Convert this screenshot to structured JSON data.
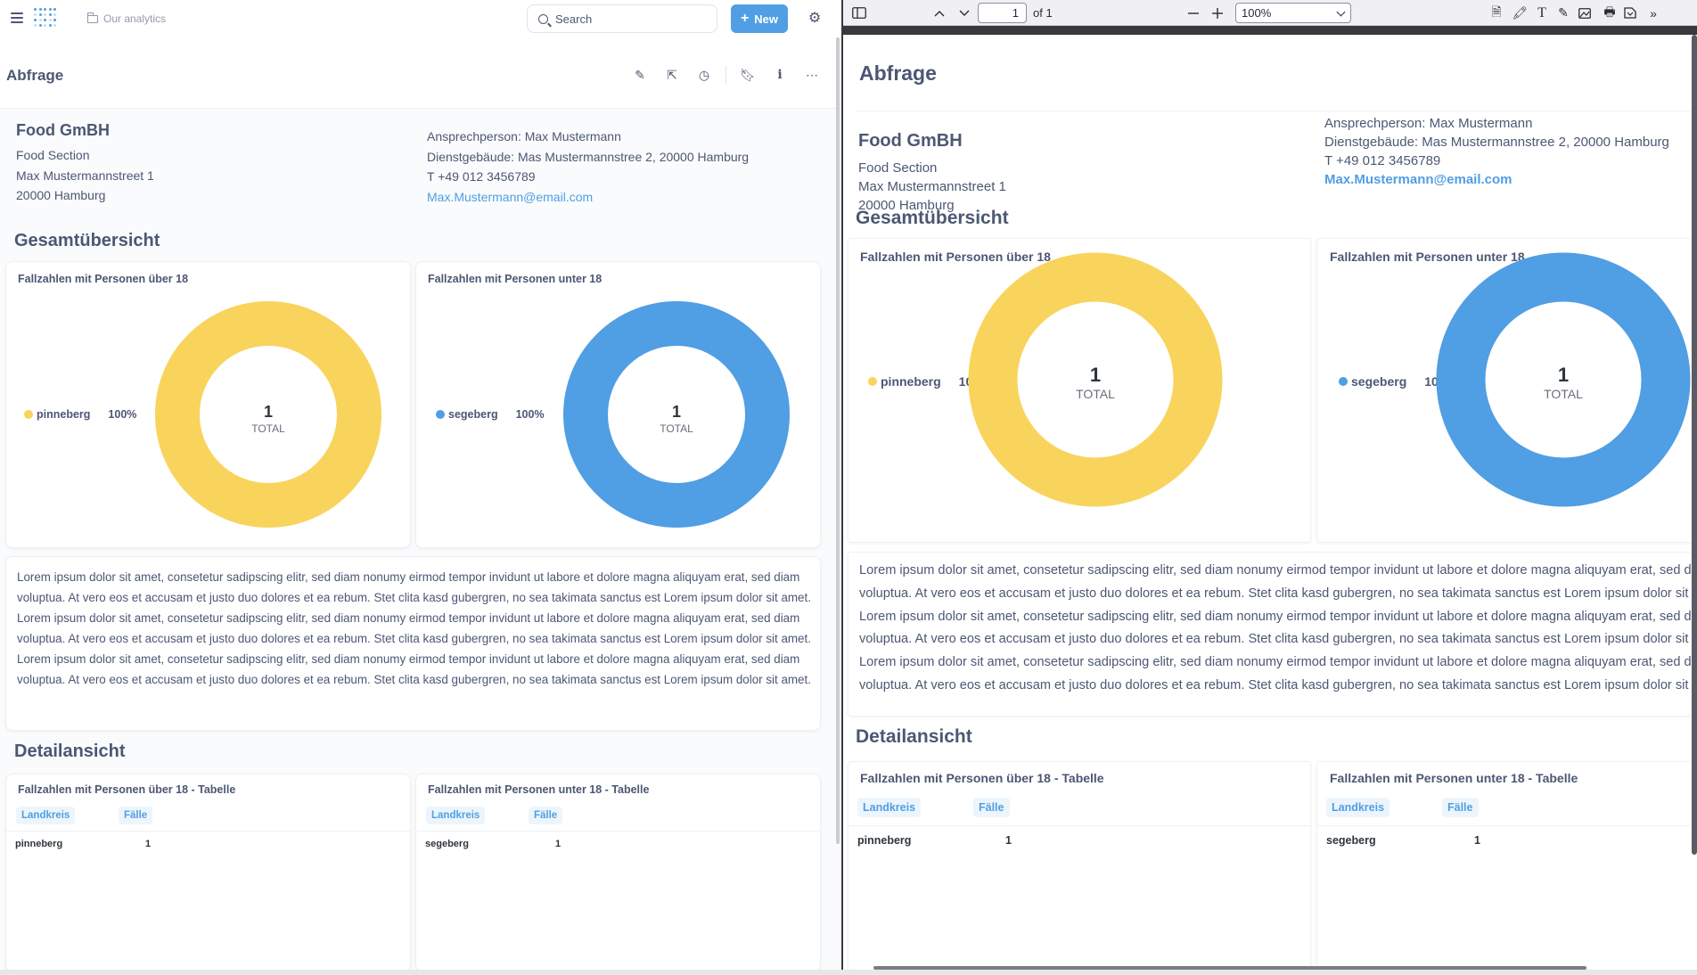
{
  "app": {
    "breadcrumb": "Our analytics",
    "search_label": "Search",
    "new_label": "New"
  },
  "dashboard": {
    "title": "Abfrage"
  },
  "company": {
    "name": "Food GmBH",
    "line1": "Food Section",
    "line2": "Max Mustermannstreet 1",
    "line3": "20000 Hamburg"
  },
  "contact": {
    "person": "Ansprechperson: Max Mustermann",
    "building": "Dienstgebäude: Mas Mustermannstree 2, 20000 Hamburg",
    "phone": "T +49 012 3456789",
    "email": "Max.Mustermann@email.com"
  },
  "sections": {
    "overview": "Gesamtübersicht",
    "detail": "Detailansicht"
  },
  "charts": {
    "over18": {
      "title": "Fallzahlen mit Personen über 18",
      "legend": "pinneberg",
      "pct": "100%",
      "total": "1",
      "total_label": "TOTAL",
      "color": "#f9d45c"
    },
    "under18": {
      "title": "Fallzahlen mit Personen unter 18",
      "legend": "segeberg",
      "pct": "100%",
      "total": "1",
      "total_label": "TOTAL",
      "color": "#509ee3"
    }
  },
  "chart_data": [
    {
      "type": "pie",
      "title": "Fallzahlen mit Personen über 18",
      "categories": [
        "pinneberg"
      ],
      "values": [
        1
      ],
      "total": 1
    },
    {
      "type": "pie",
      "title": "Fallzahlen mit Personen unter 18",
      "categories": [
        "segeberg"
      ],
      "values": [
        1
      ],
      "total": 1
    }
  ],
  "lorem_full": "Lorem ipsum dolor sit amet, consetetur sadipscing elitr, sed diam nonumy eirmod tempor invidunt ut labore et dolore magna aliquyam erat, sed diam voluptua. At vero eos et accusam et justo duo dolores et ea rebum. Stet clita kasd gubergren, no sea takimata sanctus est Lorem ipsum dolor sit amet. Lorem ipsum dolor sit amet, consetetur sadipscing elitr, sed diam nonumy eirmod tempor invidunt ut labore et dolore magna aliquyam erat, sed diam voluptua. At vero eos et accusam et justo duo dolores et ea rebum. Stet clita kasd gubergren, no sea takimata sanctus est Lorem ipsum dolor sit amet. Lorem ipsum dolor sit amet, consetetur sadipscing elitr, sed diam nonumy eirmod tempor invidunt ut labore et dolore magna aliquyam erat, sed diam voluptua. At vero eos et accusam et justo duo dolores et ea rebum. Stet clita kasd gubergren, no sea takimata sanctus est Lorem ipsum dolor sit amet.",
  "tables": {
    "over18": {
      "title": "Fallzahlen mit Personen über 18 - Tabelle",
      "col1": "Landkreis",
      "col2": "Fälle",
      "row_name": "pinneberg",
      "row_value": "1"
    },
    "under18": {
      "title": "Fallzahlen mit Personen unter 18 - Tabelle",
      "col1": "Landkreis",
      "col2": "Fälle",
      "row_name": "segeberg",
      "row_value": "1"
    }
  },
  "pdf": {
    "page_current": "1",
    "page_of": "of 1",
    "zoom": "100%"
  }
}
